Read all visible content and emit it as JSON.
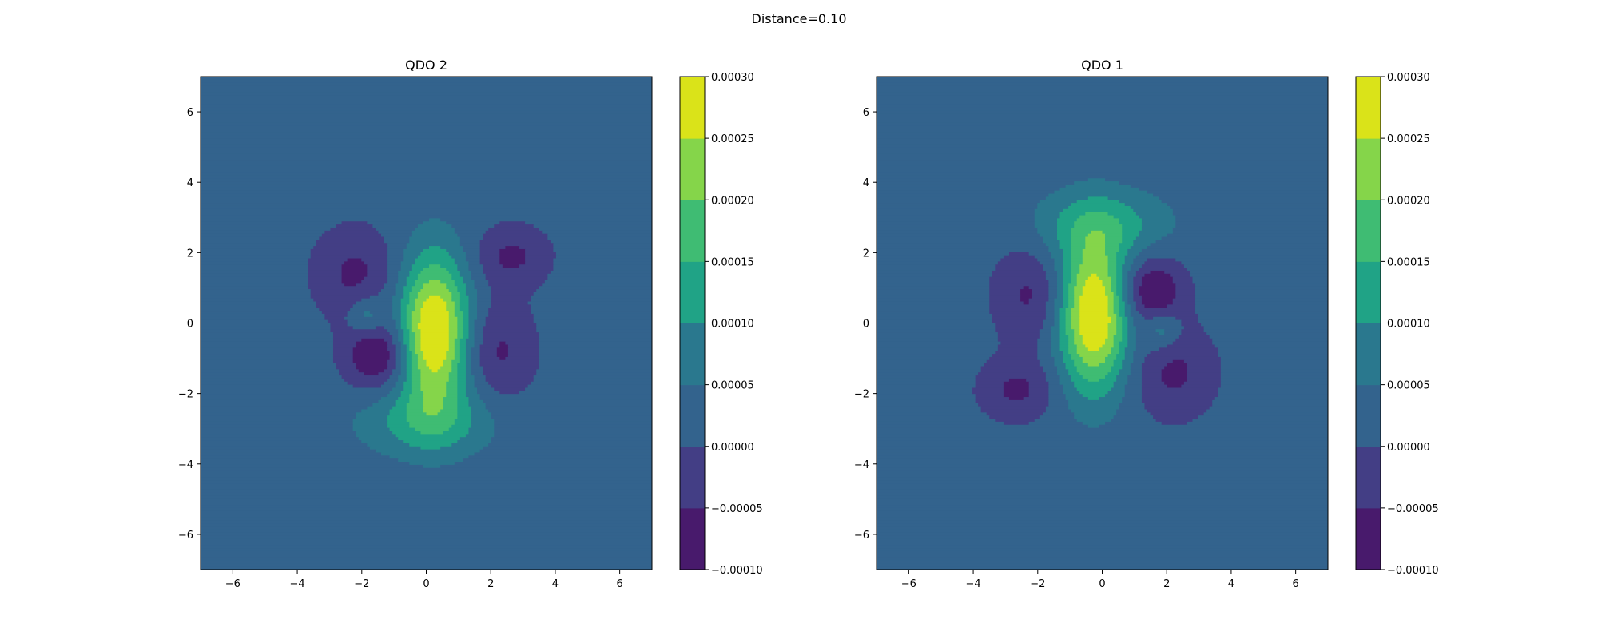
{
  "figure": {
    "suptitle": "Distance=0.10"
  },
  "colors": {
    "levels": [
      "#440154",
      "#46327e",
      "#365c8d",
      "#277f8e",
      "#1fa187",
      "#4ac16d",
      "#a0da39",
      "#fde725"
    ],
    "rendered_levels": [
      "#481a6c",
      "#433e85",
      "#33638d",
      "#2a788e",
      "#20a386",
      "#3fbc73",
      "#85d54a",
      "#dae319"
    ]
  },
  "chart_data": [
    {
      "type": "heatmap",
      "subtype": "filled-contour",
      "title": "QDO 2",
      "xlim": [
        -7,
        7
      ],
      "ylim": [
        -7,
        7
      ],
      "xticks": [
        "−6",
        "−4",
        "−2",
        "0",
        "2",
        "4",
        "6"
      ],
      "yticks": [
        "−6",
        "−4",
        "−2",
        "0",
        "2",
        "4",
        "6"
      ],
      "grid": false,
      "colorbar": {
        "levels": [
          -0.0001,
          -5e-05,
          0.0,
          5e-05,
          0.0001,
          0.00015,
          0.0002,
          0.00025,
          0.0003
        ],
        "tick_labels": [
          "−0.00010",
          "−0.00005",
          "0.00000",
          "0.00005",
          "0.00010",
          "0.00015",
          "0.00020",
          "0.00025",
          "0.00030"
        ],
        "placement": "right"
      },
      "field": {
        "background": 2e-05,
        "components": [
          {
            "amp": 0.0003,
            "cx": 0.25,
            "cy": -0.25,
            "sx": 0.75,
            "sy": 1.5
          },
          {
            "amp": 0.0001,
            "cx": 0.0,
            "cy": -2.8,
            "sx": 1.5,
            "sy": 0.7
          },
          {
            "amp": -8e-05,
            "cx": -2.2,
            "cy": 1.4,
            "sx": 0.9,
            "sy": 0.9
          },
          {
            "amp": -0.00013,
            "cx": -1.5,
            "cy": -0.9,
            "sx": 0.7,
            "sy": 0.7
          },
          {
            "amp": -8e-05,
            "cx": 2.65,
            "cy": 1.9,
            "sx": 0.8,
            "sy": 0.6
          },
          {
            "amp": -8e-05,
            "cx": 2.2,
            "cy": -0.8,
            "sx": 0.8,
            "sy": 1.0
          },
          {
            "amp": 9e-05,
            "cx": -1.85,
            "cy": 0.2,
            "sx": 0.4,
            "sy": 0.4
          }
        ]
      }
    },
    {
      "type": "heatmap",
      "subtype": "filled-contour",
      "title": "QDO 1",
      "xlim": [
        -7,
        7
      ],
      "ylim": [
        -7,
        7
      ],
      "xticks": [
        "−6",
        "−4",
        "−2",
        "0",
        "2",
        "4",
        "6"
      ],
      "yticks": [
        "−6",
        "−4",
        "−2",
        "0",
        "2",
        "4",
        "6"
      ],
      "grid": false,
      "colorbar": {
        "levels": [
          -0.0001,
          -5e-05,
          0.0,
          5e-05,
          0.0001,
          0.00015,
          0.0002,
          0.00025,
          0.0003
        ],
        "tick_labels": [
          "−0.00010",
          "−0.00005",
          "0.00000",
          "0.00005",
          "0.00010",
          "0.00015",
          "0.00020",
          "0.00025",
          "0.00030"
        ],
        "placement": "right"
      },
      "field": {
        "background": 2e-05,
        "components": [
          {
            "amp": 0.0003,
            "cx": -0.25,
            "cy": 0.25,
            "sx": 0.75,
            "sy": 1.5
          },
          {
            "amp": 0.0001,
            "cx": 0.0,
            "cy": 2.8,
            "sx": 1.5,
            "sy": 0.7
          },
          {
            "amp": -8e-05,
            "cx": 2.2,
            "cy": -1.4,
            "sx": 0.9,
            "sy": 0.9
          },
          {
            "amp": -0.00013,
            "cx": 1.5,
            "cy": 0.9,
            "sx": 0.7,
            "sy": 0.7
          },
          {
            "amp": -8e-05,
            "cx": -2.65,
            "cy": -1.9,
            "sx": 0.8,
            "sy": 0.6
          },
          {
            "amp": -8e-05,
            "cx": -2.2,
            "cy": 0.8,
            "sx": 0.8,
            "sy": 1.0
          },
          {
            "amp": 9e-05,
            "cx": 1.85,
            "cy": -0.2,
            "sx": 0.4,
            "sy": 0.4
          }
        ]
      }
    }
  ]
}
